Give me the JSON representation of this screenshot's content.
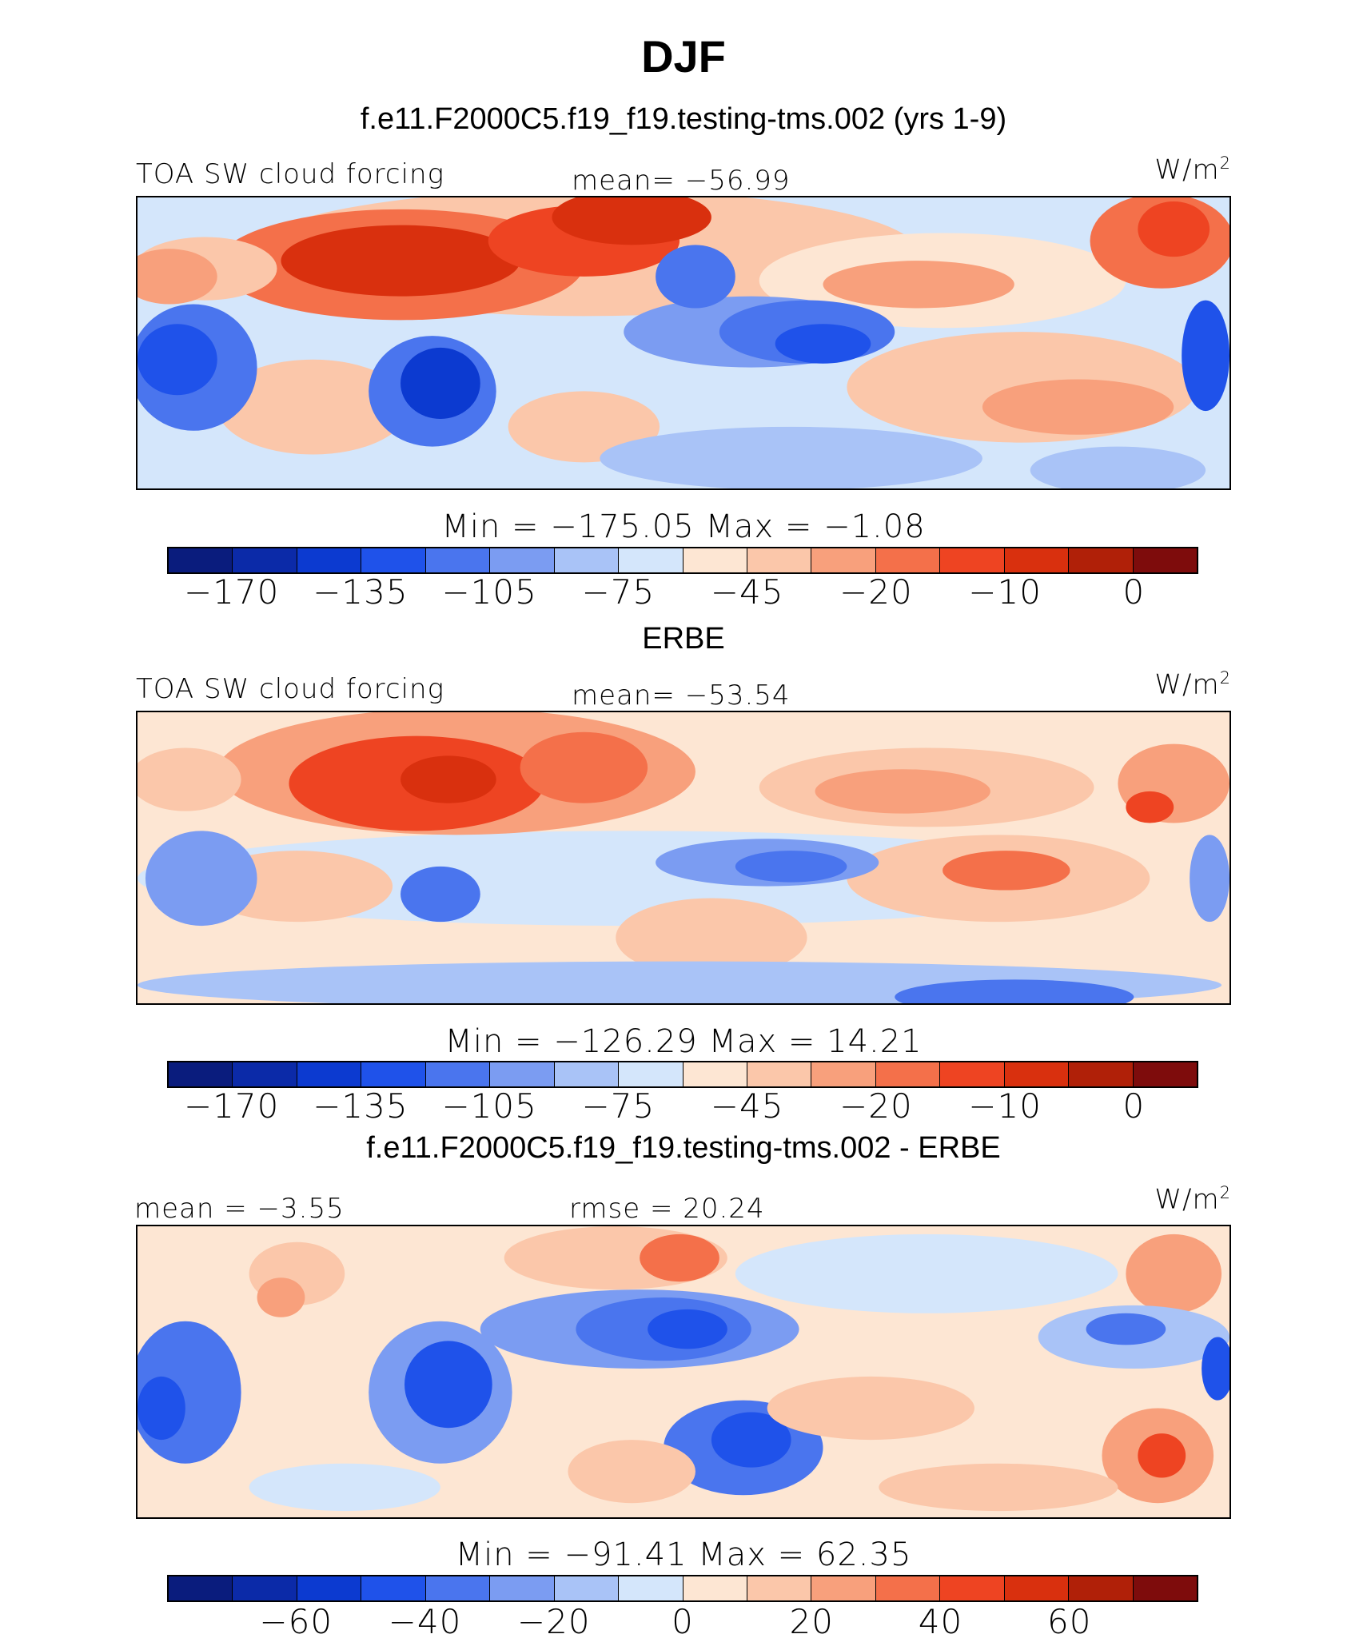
{
  "title": "DJF",
  "units_base": "W/m",
  "units_exp": "2",
  "panels": [
    {
      "subtitle": "f.e11.F2000C5.f19_f19.testing-tms.002 (yrs 1-9)",
      "left_label": "TOA SW cloud forcing",
      "center_label": "mean= −56.99",
      "min_max": "Min  =  −175.05  Max  =   −1.08",
      "colorbar_ticks": [
        "−170",
        "−135",
        "−105",
        "−75",
        "−45",
        "−20",
        "−10",
        "0"
      ]
    },
    {
      "subtitle": "ERBE",
      "left_label": "TOA SW cloud forcing",
      "center_label": "mean= −53.54",
      "min_max": "Min  =  −126.29  Max  =   14.21",
      "colorbar_ticks": [
        "−170",
        "−135",
        "−105",
        "−75",
        "−45",
        "−20",
        "−10",
        "0"
      ]
    },
    {
      "subtitle": "f.e11.F2000C5.f19_f19.testing-tms.002 - ERBE",
      "left_label": "mean =   −3.55",
      "center_label": "rmse =   20.24",
      "min_max": "Min  =  −91.41  Max  =   62.35",
      "colorbar_ticks": [
        "−60",
        "−40",
        "−20",
        "0",
        "20",
        "40",
        "60"
      ]
    }
  ],
  "colorbar_colors": [
    "#0a1c7d",
    "#0b2aa8",
    "#0c3ad0",
    "#1f52ea",
    "#4a75ee",
    "#7b9cf2",
    "#a9c3f7",
    "#d4e6fb",
    "#fde6d3",
    "#fbc7aa",
    "#f8a07c",
    "#f4704a",
    "#ee4422",
    "#d9300e",
    "#b02008",
    "#7e0c0c"
  ]
}
